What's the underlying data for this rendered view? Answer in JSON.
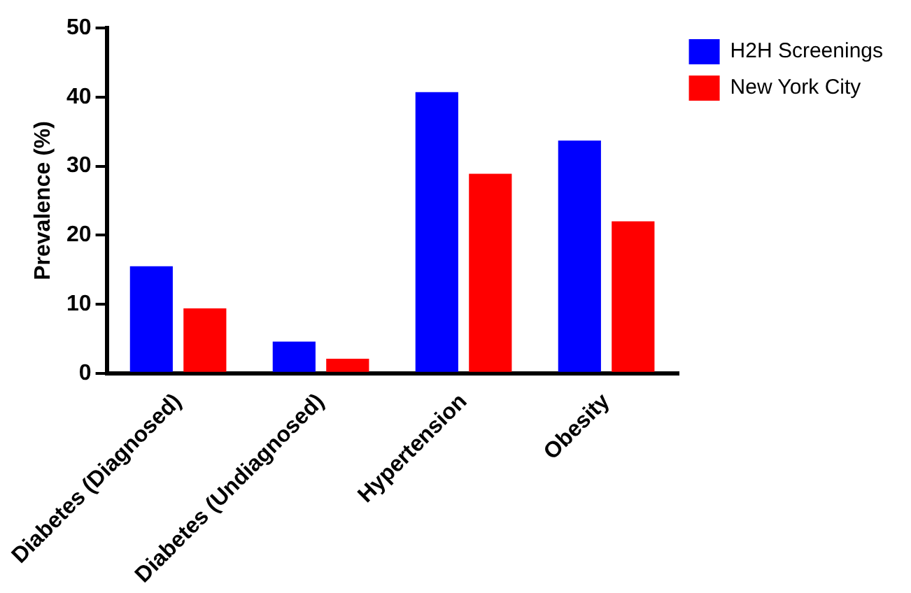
{
  "chart_data": {
    "type": "bar",
    "ylabel": "Prevalence (%)",
    "categories": [
      "Diabetes (Diagnosed)",
      "Diabetes (Undiagnosed)",
      "Hypertension",
      "Obesity"
    ],
    "series": [
      {
        "name": "H2H Screenings",
        "color": "#0000ff",
        "values": [
          15.5,
          4.6,
          40.7,
          33.7
        ]
      },
      {
        "name": "New York City",
        "color": "#ff0000",
        "values": [
          9.4,
          2.1,
          28.9,
          22.0
        ]
      }
    ],
    "ylim": [
      0,
      50
    ],
    "yticks": [
      0,
      10,
      20,
      30,
      40,
      50
    ],
    "grid": false,
    "legend": "top right"
  }
}
